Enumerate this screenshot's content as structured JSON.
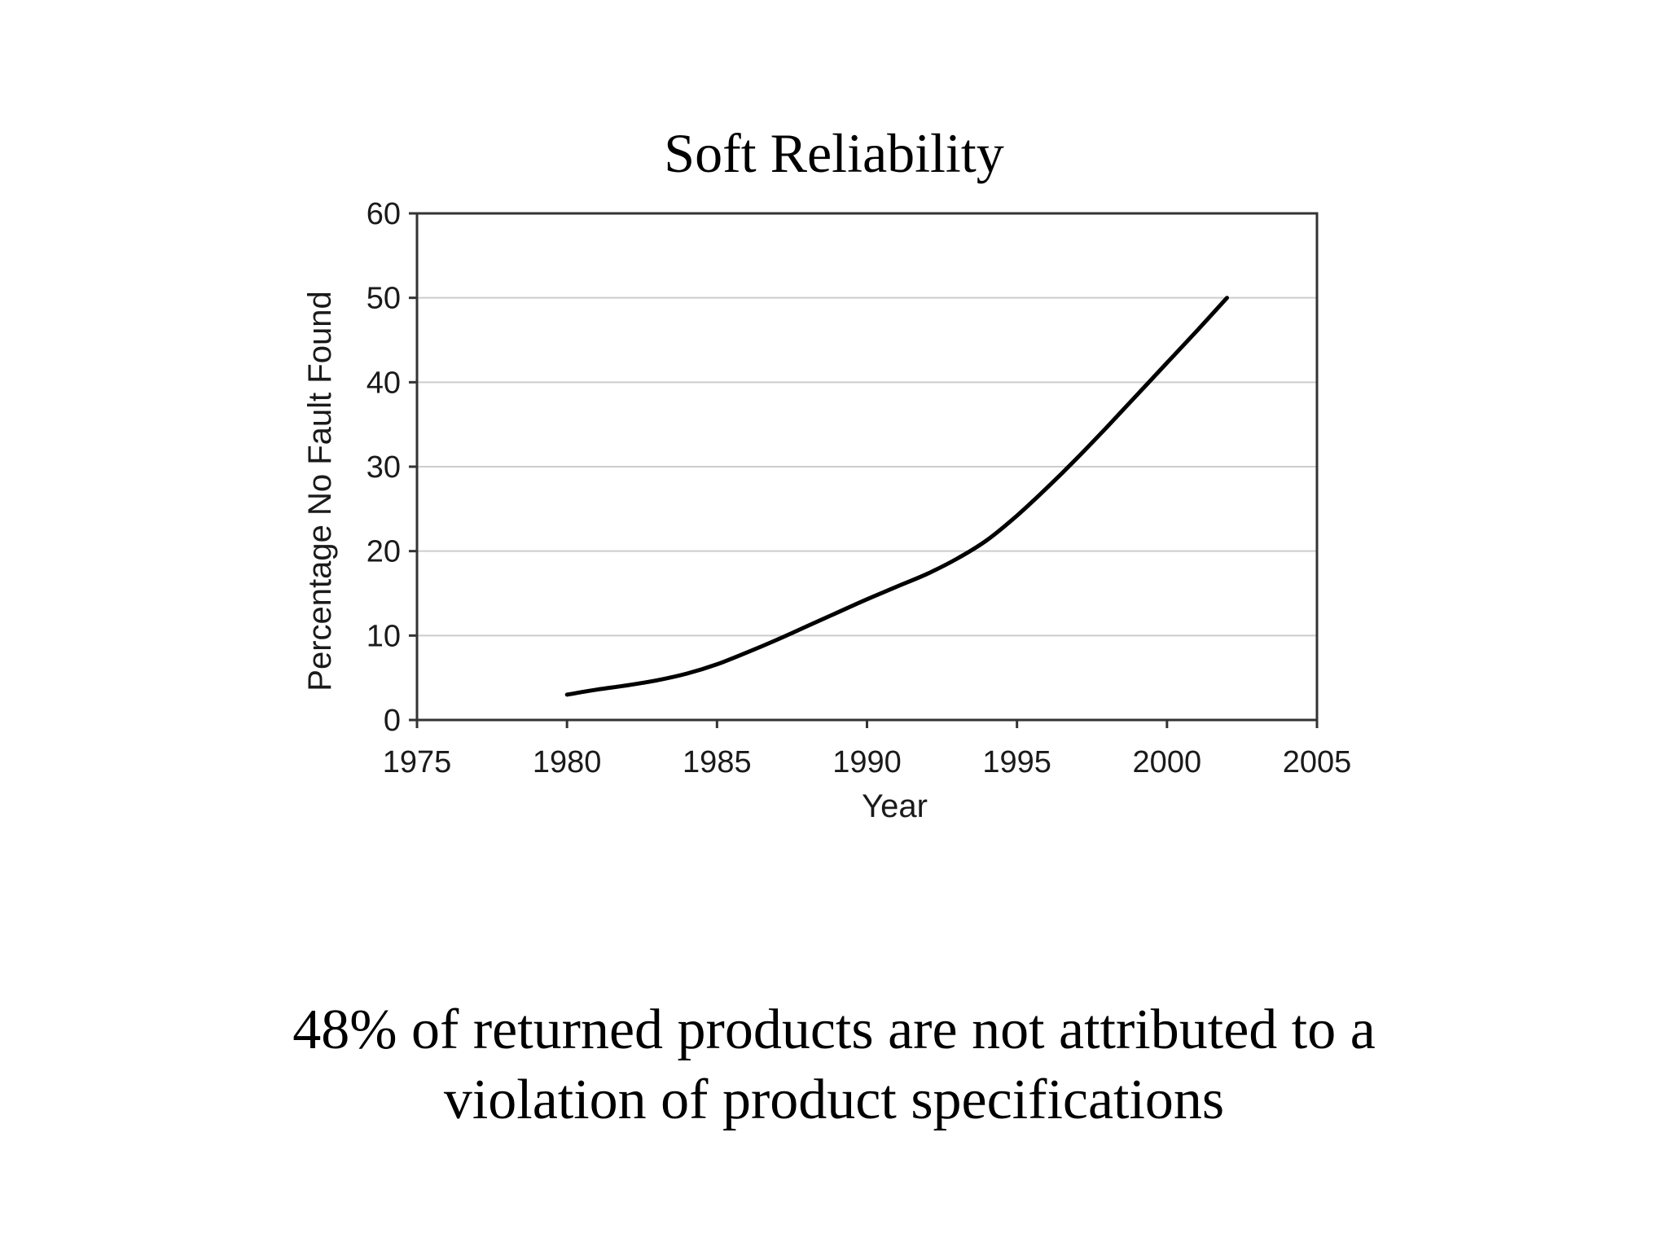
{
  "slide": {
    "title": "Soft Reliability",
    "caption_line1": "48% of returned products are not attributed to a",
    "caption_line2": "violation of product specifications"
  },
  "colors": {
    "background": "#ffffff",
    "line": "#000000",
    "gridline": "#cccccc",
    "axis": "#333333"
  },
  "chart_data": {
    "type": "line",
    "xlabel": "Year",
    "ylabel": "Percentage No Fault Found",
    "xlim": [
      1975,
      2005
    ],
    "ylim": [
      0,
      60
    ],
    "x_ticks": [
      1975,
      1980,
      1985,
      1990,
      1995,
      2000,
      2005
    ],
    "y_ticks": [
      0,
      10,
      20,
      30,
      40,
      50,
      60
    ],
    "grid": "horizontal",
    "series": [
      {
        "x": [
          1980,
          1981,
          1982,
          1983,
          1984,
          1985,
          1986,
          1987,
          1988,
          1989,
          1990,
          1991,
          1992,
          1993,
          1994,
          1995,
          1996,
          1997,
          1998,
          1999,
          2000,
          2001,
          2002
        ],
        "y": [
          3,
          3.6,
          4.1,
          4.7,
          5.5,
          6.6,
          8,
          9.5,
          11.1,
          12.7,
          14.3,
          15.8,
          17.3,
          19.1,
          21.3,
          24.2,
          27.5,
          31,
          34.7,
          38.5,
          42.3,
          46.1,
          50
        ]
      }
    ]
  }
}
